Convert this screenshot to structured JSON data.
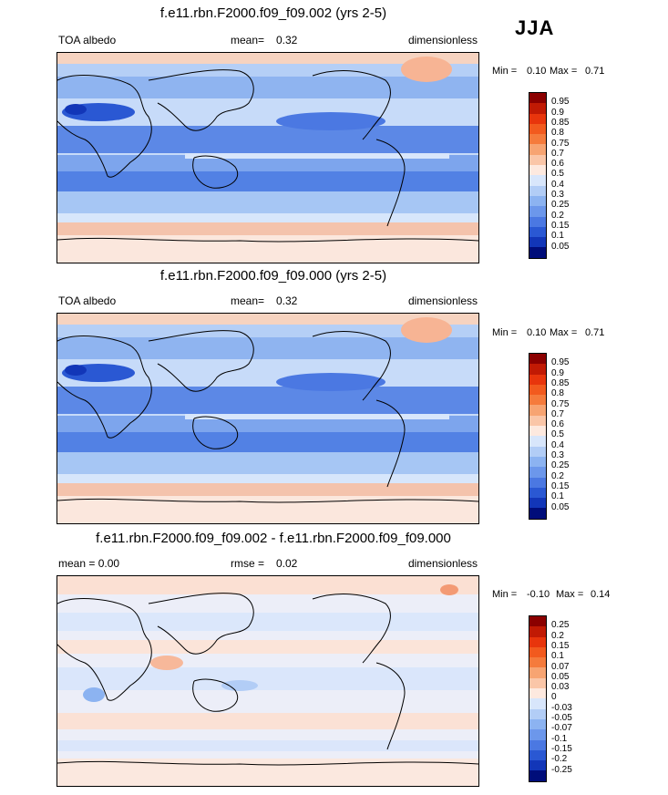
{
  "season": "JJA",
  "panels": [
    {
      "title": "f.e11.rbn.F2000.f09_f09.002 (yrs 2-5)",
      "left": "TOA albedo",
      "center_label": "mean=",
      "center_value": "0.32",
      "right": "dimensionless",
      "min_label": "Min =",
      "min_value": "0.10",
      "max_label": "Max =",
      "max_value": "0.71",
      "colorbar": {
        "labels": [
          "0.95",
          "0.9",
          "0.85",
          "0.8",
          "0.75",
          "0.7",
          "0.6",
          "0.5",
          "0.4",
          "0.3",
          "0.25",
          "0.2",
          "0.15",
          "0.1",
          "0.05"
        ],
        "colors": [
          "#8b0000",
          "#c11a04",
          "#e8350c",
          "#f25a1e",
          "#f57b3c",
          "#f7a472",
          "#fac6a8",
          "#fde9df",
          "#d8e6fb",
          "#b2cdf6",
          "#8cb3f1",
          "#6c97eb",
          "#4b78e2",
          "#2a58d3",
          "#1236b8",
          "#000d7a"
        ]
      }
    },
    {
      "title": "f.e11.rbn.F2000.f09_f09.000 (yrs 2-5)",
      "left": "TOA albedo",
      "center_label": "mean=",
      "center_value": "0.32",
      "right": "dimensionless",
      "min_label": "Min =",
      "min_value": "0.10",
      "max_label": "Max =",
      "max_value": "0.71",
      "colorbar": {
        "labels": [
          "0.95",
          "0.9",
          "0.85",
          "0.8",
          "0.75",
          "0.7",
          "0.6",
          "0.5",
          "0.4",
          "0.3",
          "0.25",
          "0.2",
          "0.15",
          "0.1",
          "0.05"
        ],
        "colors": [
          "#8b0000",
          "#c11a04",
          "#e8350c",
          "#f25a1e",
          "#f57b3c",
          "#f7a472",
          "#fac6a8",
          "#fde9df",
          "#d8e6fb",
          "#b2cdf6",
          "#8cb3f1",
          "#6c97eb",
          "#4b78e2",
          "#2a58d3",
          "#1236b8",
          "#000d7a"
        ]
      }
    },
    {
      "title": "f.e11.rbn.F2000.f09_f09.002 - f.e11.rbn.F2000.f09_f09.000",
      "left": "mean =  0.00",
      "center_label": "rmse =",
      "center_value": "0.02",
      "right": "dimensionless",
      "min_label": "Min =",
      "min_value": "-0.10",
      "max_label": "Max =",
      "max_value": "0.14",
      "colorbar": {
        "labels": [
          "0.25",
          "0.2",
          "0.15",
          "0.1",
          "0.07",
          "0.05",
          "0.03",
          "0",
          "-0.03",
          "-0.05",
          "-0.07",
          "-0.1",
          "-0.15",
          "-0.2",
          "-0.25"
        ],
        "colors": [
          "#8b0000",
          "#c11a04",
          "#e8350c",
          "#f25a1e",
          "#f57b3c",
          "#f7a472",
          "#fac6a8",
          "#fde9df",
          "#d8e6fb",
          "#b2cdf6",
          "#8cb3f1",
          "#6c97eb",
          "#4b78e2",
          "#2a58d3",
          "#1236b8",
          "#000d7a"
        ]
      }
    }
  ]
}
